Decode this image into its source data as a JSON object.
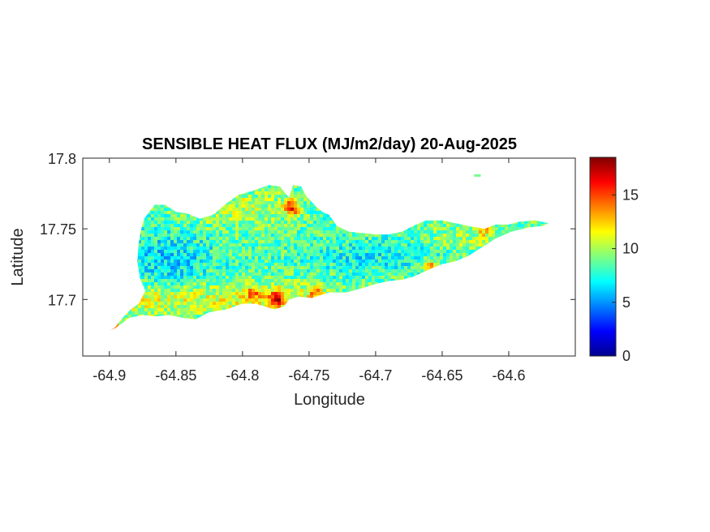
{
  "chart_data": {
    "type": "heatmap",
    "title": "SENSIBLE HEAT FLUX (MJ/m2/day) 20-Aug-2025",
    "xlabel": "Longitude",
    "ylabel": "Latitude",
    "xlim": [
      -64.92,
      -64.55
    ],
    "ylim": [
      17.66,
      17.8
    ],
    "xticks": [
      -64.9,
      -64.85,
      -64.8,
      -64.75,
      -64.7,
      -64.65,
      -64.6
    ],
    "xtick_labels": [
      "-64.9",
      "-64.85",
      "-64.8",
      "-64.75",
      "-64.7",
      "-64.65",
      "-64.6"
    ],
    "yticks": [
      17.7,
      17.75,
      17.8
    ],
    "ytick_labels": [
      "17.7",
      "17.75",
      "17.8"
    ],
    "colorbar": {
      "colormap": "jet",
      "clim": [
        0,
        18.5
      ],
      "ticks": [
        0,
        5,
        10,
        15
      ],
      "tick_labels": [
        "0",
        "5",
        "10",
        "15"
      ]
    },
    "grid": false,
    "region_outline": [
      [
        -64.9,
        17.678
      ],
      [
        -64.896,
        17.68
      ],
      [
        -64.89,
        17.687
      ],
      [
        -64.884,
        17.693
      ],
      [
        -64.878,
        17.697
      ],
      [
        -64.873,
        17.706
      ],
      [
        -64.877,
        17.715
      ],
      [
        -64.879,
        17.727
      ],
      [
        -64.878,
        17.74
      ],
      [
        -64.876,
        17.75
      ],
      [
        -64.874,
        17.757
      ],
      [
        -64.866,
        17.767
      ],
      [
        -64.858,
        17.767
      ],
      [
        -64.85,
        17.762
      ],
      [
        -64.842,
        17.761
      ],
      [
        -64.832,
        17.757
      ],
      [
        -64.822,
        17.76
      ],
      [
        -64.812,
        17.768
      ],
      [
        -64.803,
        17.774
      ],
      [
        -64.792,
        17.777
      ],
      [
        -64.78,
        17.781
      ],
      [
        -64.772,
        17.78
      ],
      [
        -64.765,
        17.772
      ],
      [
        -64.762,
        17.781
      ],
      [
        -64.756,
        17.78
      ],
      [
        -64.752,
        17.773
      ],
      [
        -64.745,
        17.766
      ],
      [
        -64.74,
        17.762
      ],
      [
        -64.735,
        17.76
      ],
      [
        -64.729,
        17.752
      ],
      [
        -64.72,
        17.748
      ],
      [
        -64.71,
        17.747
      ],
      [
        -64.7,
        17.746
      ],
      [
        -64.69,
        17.746
      ],
      [
        -64.68,
        17.748
      ],
      [
        -64.672,
        17.752
      ],
      [
        -64.662,
        17.756
      ],
      [
        -64.65,
        17.756
      ],
      [
        -64.64,
        17.754
      ],
      [
        -64.63,
        17.752
      ],
      [
        -64.618,
        17.75
      ],
      [
        -64.61,
        17.753
      ],
      [
        -64.6,
        17.753
      ],
      [
        -64.592,
        17.755
      ],
      [
        -64.58,
        17.756
      ],
      [
        -64.57,
        17.754
      ],
      [
        -64.575,
        17.752
      ],
      [
        -64.585,
        17.751
      ],
      [
        -64.598,
        17.748
      ],
      [
        -64.61,
        17.743
      ],
      [
        -64.62,
        17.737
      ],
      [
        -64.63,
        17.731
      ],
      [
        -64.64,
        17.727
      ],
      [
        -64.65,
        17.725
      ],
      [
        -64.658,
        17.722
      ],
      [
        -64.665,
        17.719
      ],
      [
        -64.672,
        17.716
      ],
      [
        -64.68,
        17.714
      ],
      [
        -64.69,
        17.713
      ],
      [
        -64.7,
        17.711
      ],
      [
        -64.71,
        17.708
      ],
      [
        -64.722,
        17.705
      ],
      [
        -64.735,
        17.705
      ],
      [
        -64.748,
        17.701
      ],
      [
        -64.758,
        17.702
      ],
      [
        -64.765,
        17.7
      ],
      [
        -64.769,
        17.695
      ],
      [
        -64.776,
        17.693
      ],
      [
        -64.783,
        17.695
      ],
      [
        -64.79,
        17.697
      ],
      [
        -64.8,
        17.697
      ],
      [
        -64.812,
        17.693
      ],
      [
        -64.825,
        17.691
      ],
      [
        -64.835,
        17.686
      ],
      [
        -64.845,
        17.687
      ],
      [
        -64.855,
        17.689
      ],
      [
        -64.865,
        17.688
      ],
      [
        -64.875,
        17.689
      ],
      [
        -64.885,
        17.687
      ],
      [
        -64.895,
        17.68
      ]
    ],
    "islet": [
      [
        -64.626,
        17.787
      ],
      [
        -64.621,
        17.788
      ]
    ],
    "hotspots": [
      {
        "lon": -64.898,
        "lat": 17.681,
        "value": 18
      },
      {
        "lon": -64.775,
        "lat": 17.7,
        "value": 17
      },
      {
        "lon": -64.763,
        "lat": 17.765,
        "value": 17
      },
      {
        "lon": -64.658,
        "lat": 17.722,
        "value": 17
      },
      {
        "lon": -64.792,
        "lat": 17.704,
        "value": 14
      },
      {
        "lon": -64.618,
        "lat": 17.751,
        "value": 14
      },
      {
        "lon": -64.745,
        "lat": 17.706,
        "value": 13
      }
    ],
    "spatial_pattern": "Values mostly 6-12; lower (about 5-8) in the central-west interior and along the eastern middle; higher (about 10-13) along the southern coast and in the northeast interior."
  }
}
